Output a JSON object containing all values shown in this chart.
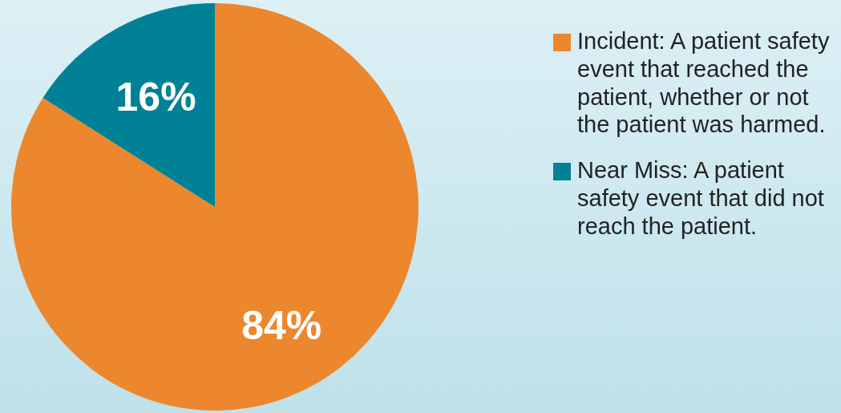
{
  "chart_data": {
    "type": "pie",
    "categories": [
      "Incident: A patient safety event that reached the patient, whether or not the patient was harmed.",
      "Near Miss: A patient safety event that did not reach the patient."
    ],
    "values": [
      84,
      16
    ],
    "colors": [
      "#ec872d",
      "#008196"
    ],
    "value_labels": [
      "84%",
      "16%"
    ],
    "legend": "right"
  }
}
